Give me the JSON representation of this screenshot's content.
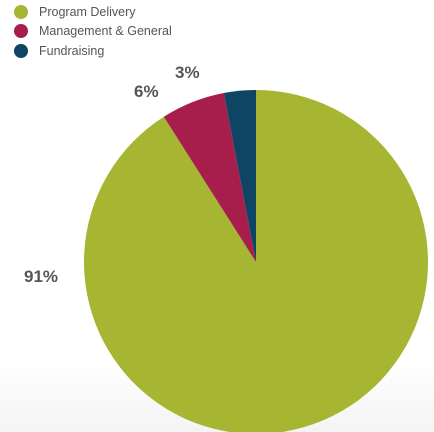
{
  "chart_data": {
    "type": "pie",
    "title": "",
    "legend_position": "top-left",
    "slices": [
      {
        "name": "Program Delivery",
        "value": 91,
        "label": "91%",
        "color": "#a6b532"
      },
      {
        "name": "Management & General",
        "value": 6,
        "label": "6%",
        "color": "#a71d4b"
      },
      {
        "name": "Fundraising",
        "value": 3,
        "label": "3%",
        "color": "#0e4563"
      }
    ]
  }
}
